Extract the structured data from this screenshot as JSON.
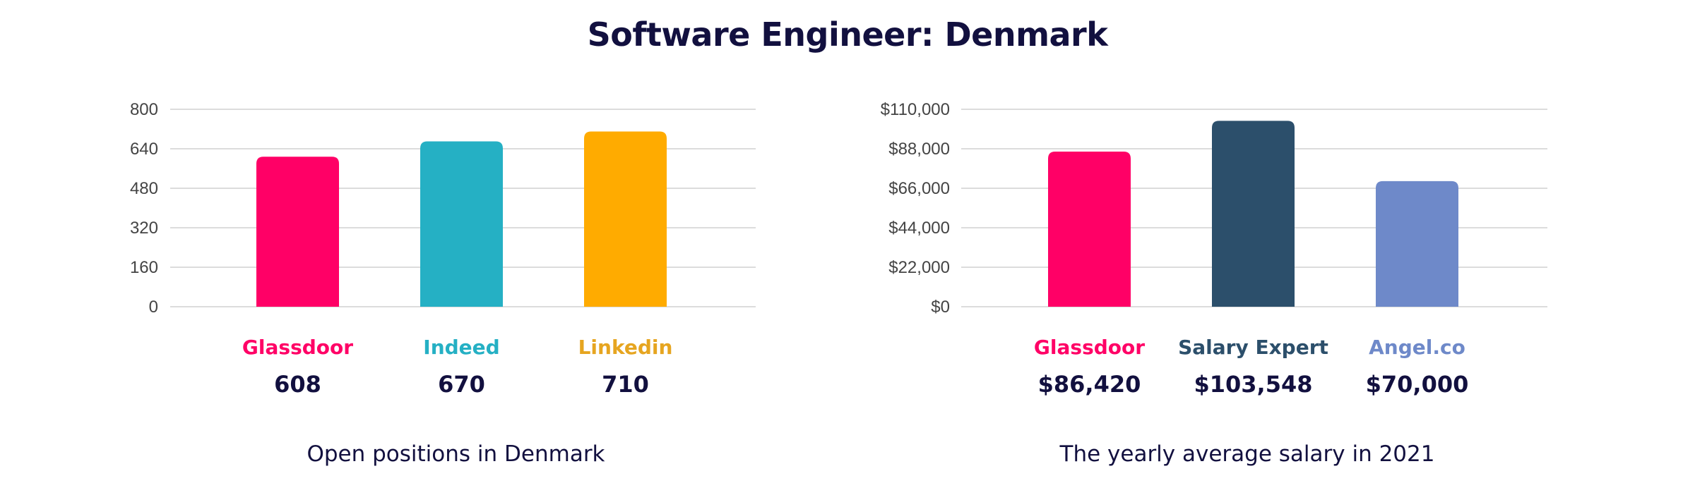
{
  "title": "Software Engineer: Denmark",
  "chart_data": [
    {
      "type": "bar",
      "caption": "Open positions in Denmark",
      "categories": [
        "Glassdoor",
        "Indeed",
        "Linkedin"
      ],
      "values": [
        608,
        670,
        710
      ],
      "value_labels": [
        "608",
        "670",
        "710"
      ],
      "colors": [
        "#FF0066",
        "#25B0C4",
        "#FFAB00"
      ],
      "label_colors": [
        "#FF0066",
        "#25B0C4",
        "#E6A520"
      ],
      "ylim": [
        0,
        800
      ],
      "yticks": [
        0,
        160,
        320,
        480,
        640,
        800
      ],
      "ytick_labels": [
        "0",
        "160",
        "320",
        "480",
        "640",
        "800"
      ],
      "grid": true
    },
    {
      "type": "bar",
      "caption": "The yearly average salary in 2021",
      "categories": [
        "Glassdoor",
        "Salary Expert",
        "Angel.co"
      ],
      "values": [
        86420,
        103548,
        70000
      ],
      "value_labels": [
        "$86,420",
        "$103,548",
        "$70,000"
      ],
      "colors": [
        "#FF0066",
        "#2C4F6B",
        "#6E89C9"
      ],
      "label_colors": [
        "#FF0066",
        "#2C4F6B",
        "#6E89C9"
      ],
      "ylim": [
        0,
        110000
      ],
      "yticks": [
        0,
        22000,
        44000,
        66000,
        88000,
        110000
      ],
      "ytick_labels": [
        "$0",
        "$22,000",
        "$44,000",
        "$66,000",
        "$88,000",
        "$110,000"
      ],
      "grid": true
    }
  ]
}
